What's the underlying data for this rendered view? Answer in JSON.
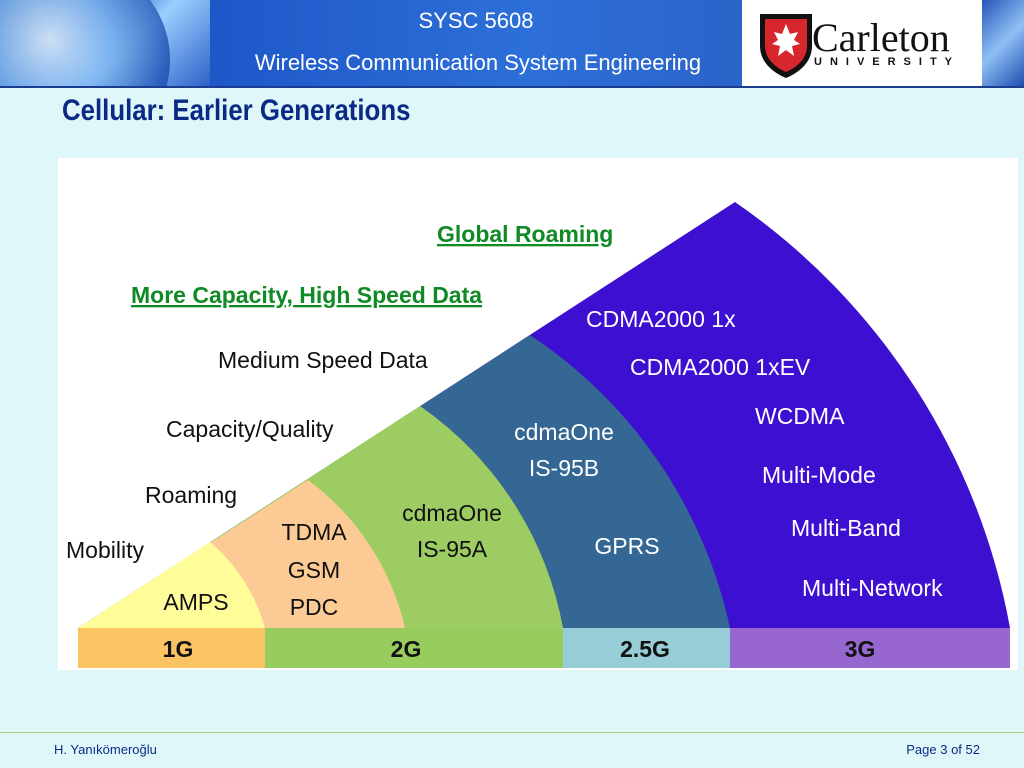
{
  "header": {
    "course_code": "SYSC 5608",
    "course_name": "Wireless Communication System Engineering",
    "logo_name": "Carleton",
    "logo_sub": "UNIVERSITY"
  },
  "slide": {
    "title": "Cellular: Earlier Generations"
  },
  "diagram": {
    "headers": {
      "global": "Global Roaming",
      "capacity": "More Capacity, High Speed Data"
    },
    "features": {
      "medium": "Medium Speed Data",
      "quality": "Capacity/Quality",
      "roaming": "Roaming",
      "mobility": "Mobility"
    },
    "g1": {
      "tech": "AMPS"
    },
    "g2a": {
      "tech": [
        "TDMA",
        "GSM",
        "PDC"
      ]
    },
    "g2b": {
      "tech": [
        "cdmaOne",
        "IS-95A"
      ]
    },
    "g25": {
      "tech": [
        "cdmaOne",
        "IS-95B",
        "GPRS"
      ]
    },
    "g3": {
      "tech": [
        "CDMA2000 1x",
        "CDMA2000 1xEV",
        "WCDMA",
        "Multi-Mode",
        "Multi-Band",
        "Multi-Network"
      ]
    },
    "bar": [
      "1G",
      "2G",
      "2.5G",
      "3G"
    ],
    "colors": {
      "g1": "#fffc9a",
      "g2a": "#fccb95",
      "g2b": "#9dcc62",
      "g25": "#356794",
      "g3": "#3d0fd0",
      "bar1": "#fbc463",
      "bar2": "#98cd5e",
      "bar25": "#97cdd6",
      "bar3": "#9866cf",
      "green_text": "#0f8a25"
    }
  },
  "footer": {
    "author": "H. Yanıkömeroğlu",
    "page": "Page 3 of 52"
  }
}
